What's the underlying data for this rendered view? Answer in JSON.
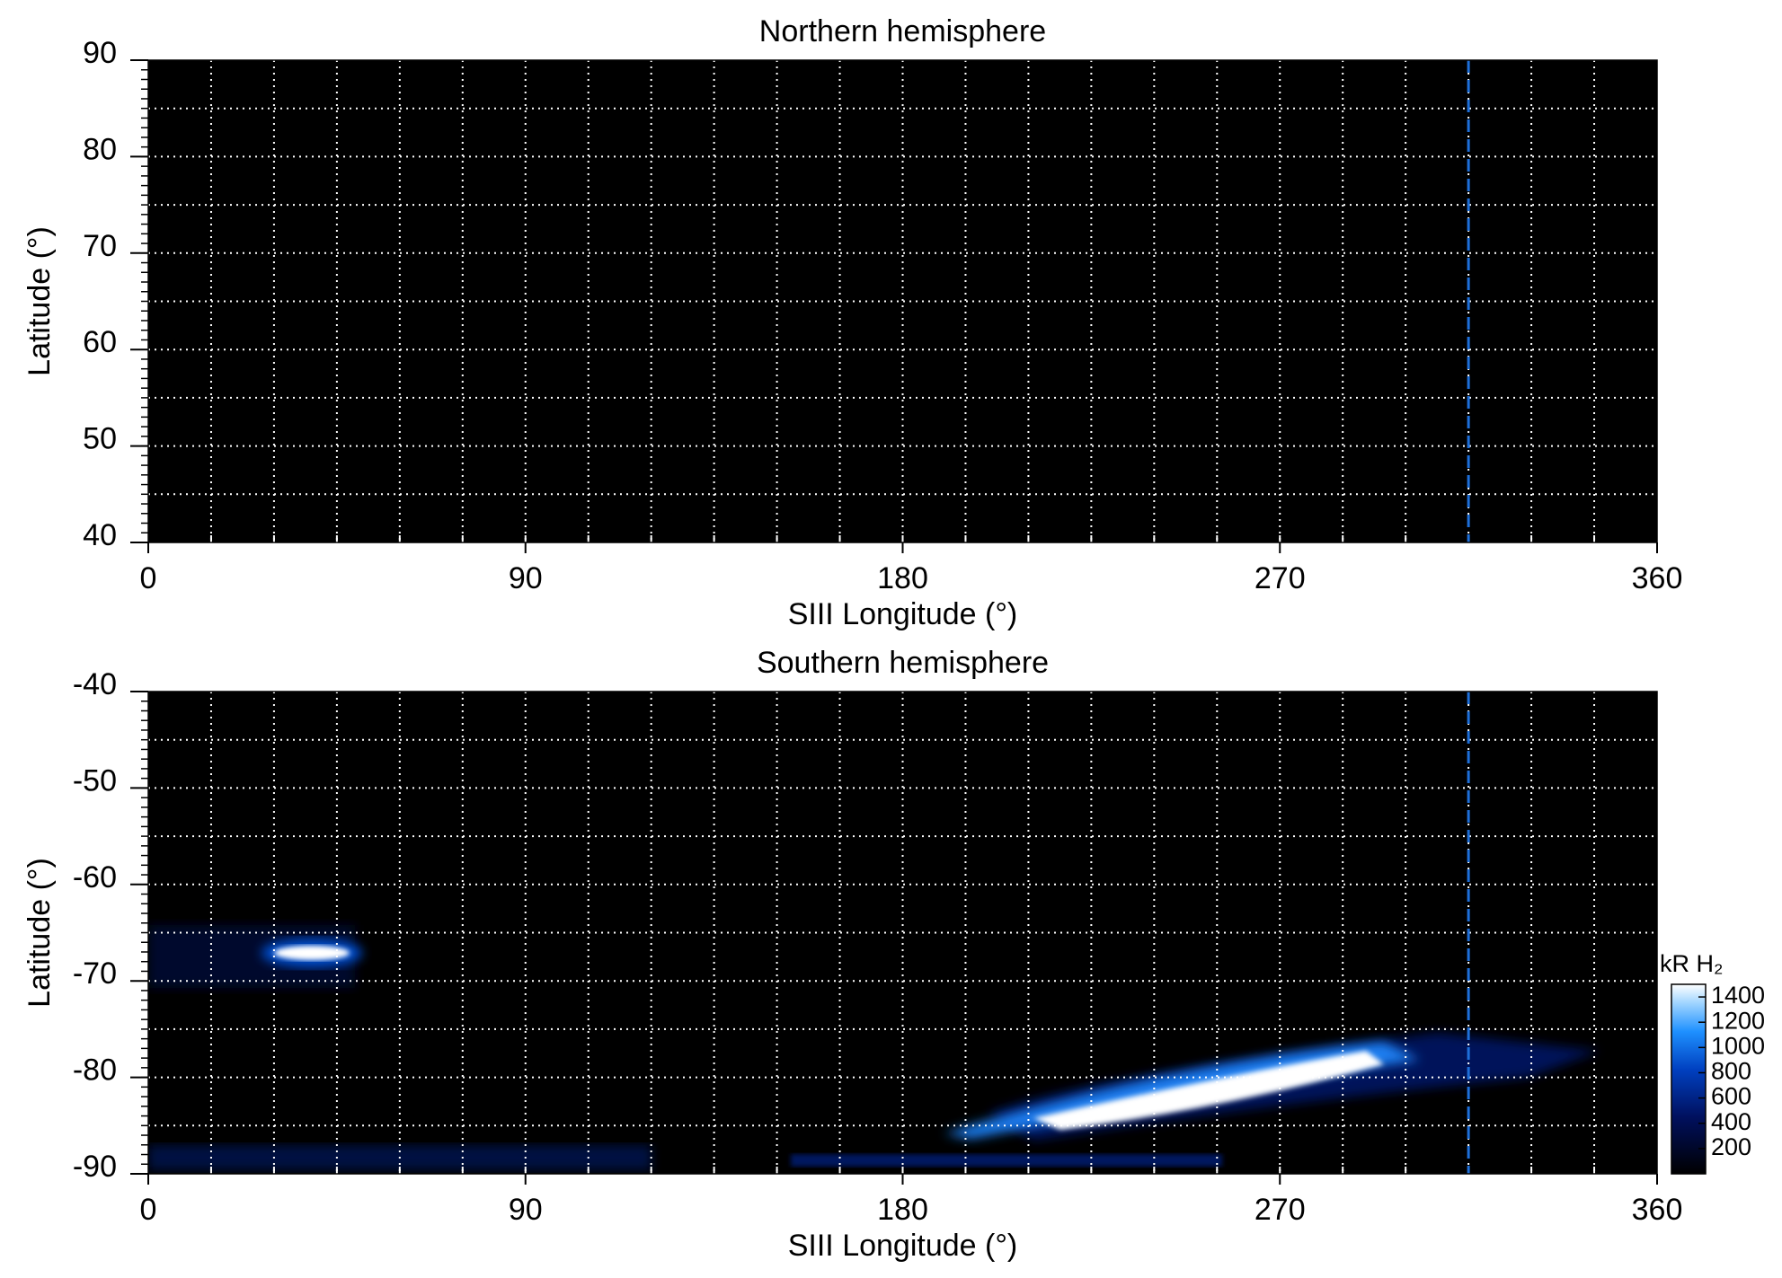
{
  "chart_data": [
    {
      "type": "heatmap",
      "title": "Northern hemisphere",
      "x_label": "SIII Longitude (°)",
      "y_label": "Latitude (°)",
      "xlim": [
        0,
        360
      ],
      "xticks": [
        0,
        90,
        180,
        270,
        360
      ],
      "ylim": [
        40,
        90
      ],
      "yticks": [
        40,
        50,
        60,
        70,
        80,
        90
      ],
      "x_grid": [
        15,
        30,
        45,
        60,
        75,
        90,
        105,
        120,
        135,
        150,
        165,
        180,
        195,
        210,
        225,
        240,
        255,
        270,
        285,
        300,
        315,
        330,
        345
      ],
      "y_grid": [
        45,
        50,
        55,
        60,
        65,
        70,
        75,
        80,
        85
      ],
      "vline": 315,
      "vline_color": "#1e6fd9"
    },
    {
      "type": "heatmap",
      "title": "Southern hemisphere",
      "x_label": "SIII Longitude (°)",
      "y_label": "Latitude (°)",
      "xlim": [
        0,
        360
      ],
      "xticks": [
        0,
        90,
        180,
        270,
        360
      ],
      "ylim": [
        -90,
        -40
      ],
      "yticks": [
        -90,
        -80,
        -70,
        -60,
        -50,
        -40
      ],
      "x_grid": [
        15,
        30,
        45,
        60,
        75,
        90,
        105,
        120,
        135,
        150,
        165,
        180,
        195,
        210,
        225,
        240,
        255,
        270,
        285,
        300,
        315,
        330,
        345
      ],
      "y_grid": [
        -85,
        -80,
        -75,
        -70,
        -65,
        -60,
        -55,
        -50,
        -45
      ],
      "vline": 315,
      "vline_color": "#1e6fd9",
      "colorbar": {
        "label": "kR H₂",
        "lim": [
          0,
          1500
        ],
        "ticks": [
          200,
          400,
          600,
          800,
          1000,
          1200,
          1400
        ]
      }
    }
  ]
}
